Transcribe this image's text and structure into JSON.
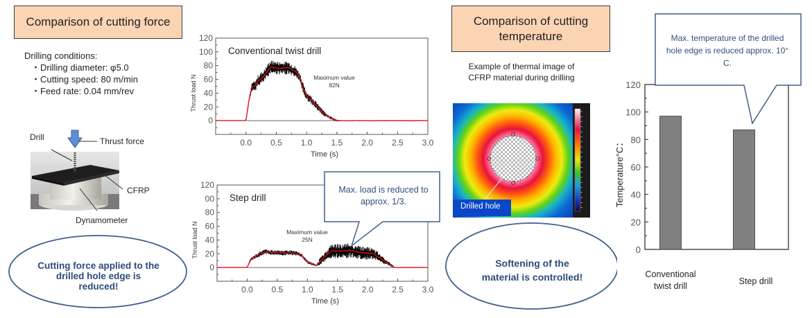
{
  "left_panel": {
    "title": "Comparison of cutting force",
    "conditions_heading": "Drilling conditions:",
    "conditions": [
      "Drilling diameter: φ5.0",
      "Cutting speed: 80 m/min",
      "Feed rate: 0.04 mm/rev"
    ],
    "diagram_labels": {
      "drill": "Drill",
      "thrust_force": "Thrust force",
      "cfrp": "CFRP",
      "dynamometer": "Dynamometer"
    },
    "conclusion": "Cutting force applied to the drilled hole edge is reduced!"
  },
  "middle_panel": {
    "step_callout": "Max. load is reduced to approx. 1/3."
  },
  "right_panel": {
    "title": "Comparison of cutting temperature",
    "thermal_caption": "Example of thermal image of CFRP material during drilling",
    "drilled_hole_label": "Drilled hole",
    "conclusion": "Softening of the material is controlled!",
    "temp_callout": "Max. temperature of the drilled hole edge is reduced approx. 10° C."
  },
  "colors": {
    "title_fill": "#fbd4b4",
    "callout_border": "#3f5f8f",
    "callout_text": "#2e4f7f",
    "signal_raw": "#000000",
    "signal_mean": "#e0141b",
    "bar_fill": "#808080"
  },
  "chart_data": [
    {
      "type": "line",
      "title": "Conventional twist drill",
      "xlabel": "Time (s)",
      "ylabel": "Thrust load N",
      "xlim": [
        -0.5,
        3.0
      ],
      "ylim": [
        -20,
        120
      ],
      "xticks": [
        "0.0",
        "0.5",
        "1.0",
        "1.5",
        "2.0",
        "2.5",
        "3.0"
      ],
      "yticks": [
        "120",
        "100",
        "80",
        "60",
        "40",
        "20",
        "0"
      ],
      "annotation": [
        "Maximum value",
        "82N"
      ],
      "series": [
        {
          "name": "mean",
          "x": [
            -0.5,
            0.0,
            0.05,
            0.1,
            0.15,
            0.2,
            0.3,
            0.4,
            0.5,
            0.6,
            0.7,
            0.8,
            0.85,
            0.9,
            0.95,
            1.0,
            1.1,
            1.2,
            1.3,
            1.4,
            1.5,
            1.6,
            3.0
          ],
          "y": [
            0,
            0,
            30,
            50,
            50,
            58,
            65,
            78,
            77,
            76,
            77,
            72,
            68,
            60,
            45,
            36,
            28,
            18,
            9,
            4,
            0,
            0,
            0
          ]
        },
        {
          "name": "noise_band",
          "amplitude": [
            0,
            0,
            2,
            5,
            6,
            7,
            8,
            8,
            8,
            8,
            8,
            7,
            6,
            6,
            6,
            5,
            5,
            4,
            3,
            2,
            1,
            0.5,
            0.5
          ]
        }
      ]
    },
    {
      "type": "line",
      "title": "Step drill",
      "xlabel": "Time (s)",
      "ylabel": "Thrust load N",
      "xlim": [
        -0.5,
        3.0
      ],
      "ylim": [
        -20,
        120
      ],
      "xticks": [
        "0.0",
        "0.5",
        "1.0",
        "1.5",
        "2.0",
        "2.5",
        "3.0"
      ],
      "yticks": [
        "120",
        "00",
        "80",
        "60",
        "40",
        "20",
        "0"
      ],
      "annotation": [
        "Maximum value",
        "25N"
      ],
      "series": [
        {
          "name": "mean",
          "x": [
            -0.5,
            0.0,
            0.05,
            0.1,
            0.2,
            0.3,
            0.4,
            0.5,
            0.6,
            0.7,
            0.8,
            0.9,
            1.0,
            1.15,
            1.2,
            1.3,
            1.4,
            1.5,
            1.6,
            1.7,
            1.8,
            1.9,
            2.0,
            2.1,
            2.2,
            2.3,
            2.4,
            2.45,
            3.0
          ],
          "y": [
            0,
            0,
            10,
            14,
            19,
            23,
            22,
            22,
            21,
            22,
            21,
            18,
            8,
            3,
            8,
            16,
            24,
            24,
            24,
            25,
            23,
            21,
            21,
            20,
            14,
            8,
            3,
            0,
            0
          ]
        },
        {
          "name": "noise_band",
          "amplitude": [
            0,
            0,
            2,
            2,
            3,
            3,
            3,
            3,
            3,
            3,
            3,
            2,
            2,
            1,
            4,
            6,
            9,
            9,
            9,
            9,
            8,
            8,
            8,
            7,
            5,
            3,
            2,
            0.5,
            0.5
          ]
        }
      ]
    },
    {
      "type": "bar",
      "categories": [
        "Conventional twist drill",
        "Step drill"
      ],
      "values": [
        97,
        87
      ],
      "ylabel": "Temperature°C：",
      "ylim": [
        0,
        120
      ],
      "yticks": [
        "120",
        "100",
        "80",
        "60",
        "40",
        "20",
        "0"
      ],
      "grid": false
    }
  ]
}
